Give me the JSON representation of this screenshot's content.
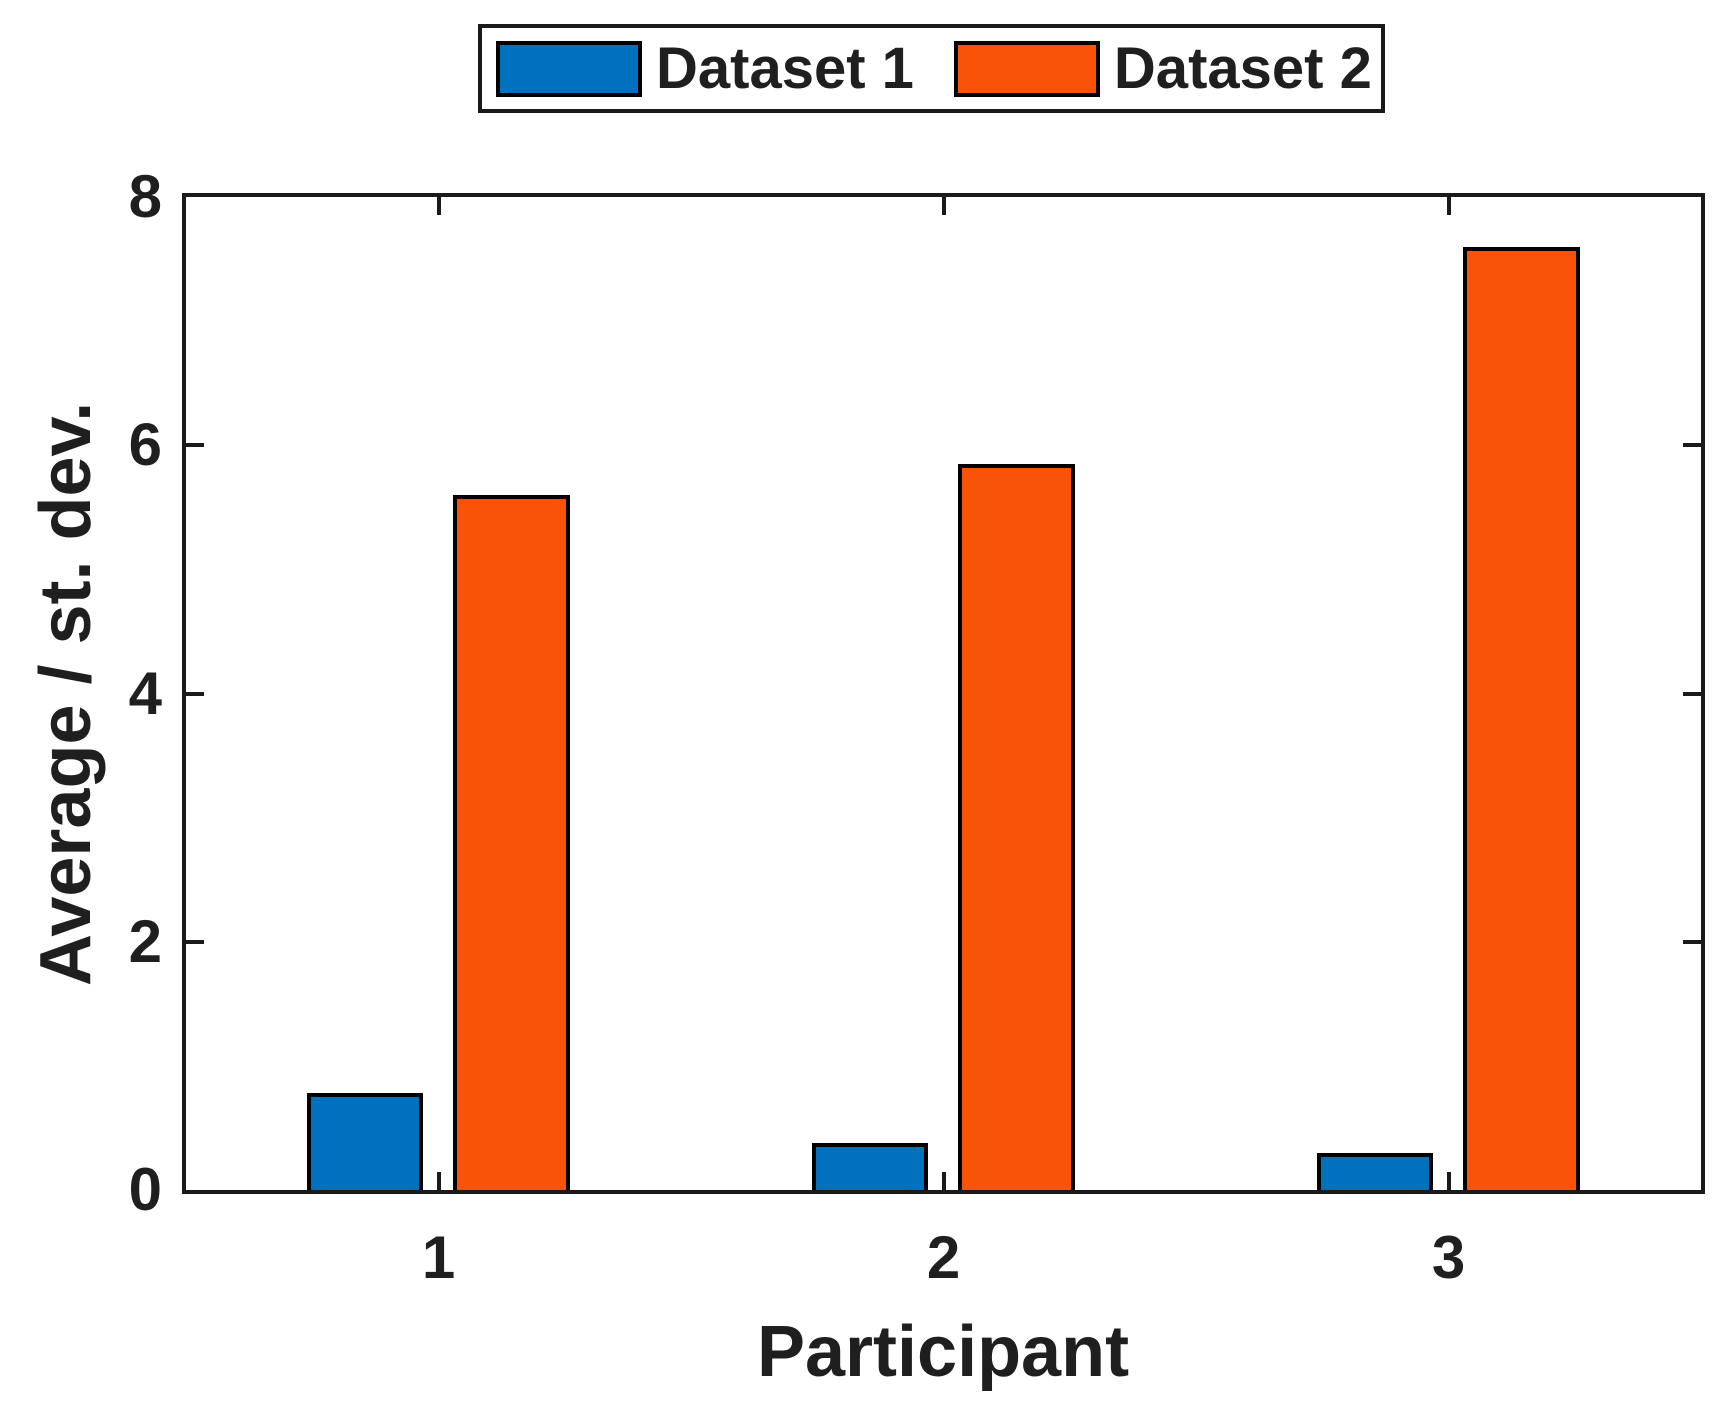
{
  "figure": {
    "background": "#FFFFFF"
  },
  "chart_data": {
    "type": "bar",
    "title": "",
    "categories": [
      "1",
      "2",
      "3"
    ],
    "series": [
      {
        "name": "Dataset 1",
        "color": "#0072BD",
        "values": [
          0.78,
          0.38,
          0.3
        ]
      },
      {
        "name": "Dataset 2",
        "color": "#F85308",
        "values": [
          5.6,
          5.85,
          7.6
        ]
      }
    ],
    "xlabel": "Participant",
    "ylabel": "Average / st. dev.",
    "ylim": [
      0,
      8
    ],
    "yticks": [
      0,
      2,
      4,
      6,
      8
    ],
    "grid": false,
    "legend_position": "top-center",
    "bar_edge_color": "#000000",
    "axis_color": "#1a1a1a"
  }
}
